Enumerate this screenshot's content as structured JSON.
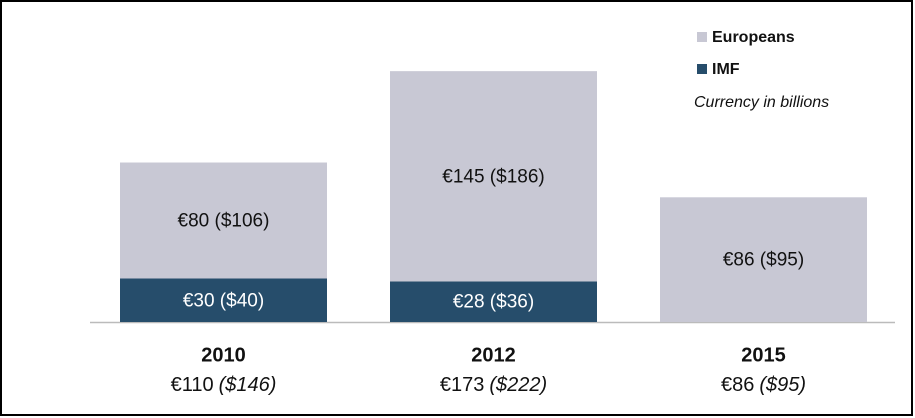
{
  "chart_data": {
    "type": "stacked-bar",
    "note": "Currency in billions",
    "categories": [
      "2010",
      "2012",
      "2015"
    ],
    "total_labels": [
      "€110",
      "€173",
      "€86"
    ],
    "total_usd_labels": [
      "($146)",
      "($222)",
      "($95)"
    ],
    "series": [
      {
        "name": "IMF",
        "color": "#264d6b",
        "values": [
          30,
          28,
          null
        ],
        "value_labels": [
          "€30 ($40)",
          "€28 ($36)",
          null
        ]
      },
      {
        "name": "Europeans",
        "color": "#c8c8d4",
        "values": [
          80,
          145,
          86
        ],
        "value_labels": [
          "€80 ($106)",
          "€145 ($186)",
          "€86 ($95)"
        ]
      }
    ]
  }
}
